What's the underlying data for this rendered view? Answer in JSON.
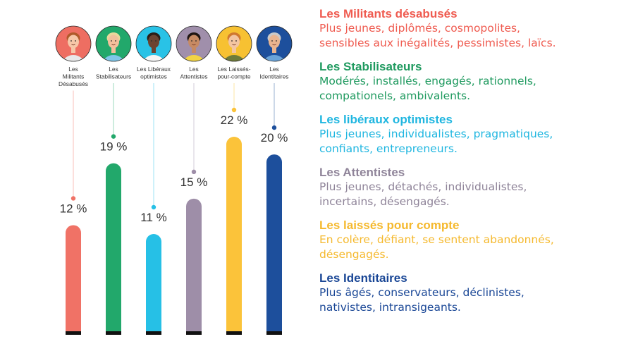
{
  "chart_data": {
    "type": "bar",
    "categories": [
      "Les\nMilitants\nDésabusés",
      "Les\nStabilisateurs",
      "Les Libéraux\noptimistes",
      "Les\nAttentistes",
      "Les Laissés-\npour-compte",
      "Les\nIdentitaires"
    ],
    "values": [
      12,
      19,
      11,
      15,
      22,
      20
    ],
    "value_labels": [
      "12 %",
      "19 %",
      "11 %",
      "15 %",
      "22 %",
      "20 %"
    ],
    "colors": [
      "#f07266",
      "#22a86b",
      "#26c0e6",
      "#9e8ea8",
      "#fbc33a",
      "#1d4f9c"
    ],
    "title": "",
    "xlabel": "",
    "ylabel": "",
    "ylim": [
      0,
      22
    ],
    "grid": false
  },
  "icons": [
    "woman-thinking-avatar",
    "man-shrugging-avatar",
    "man-arms-open-avatar",
    "woman-shrugging-avatar",
    "woman-arms-crossed-avatar",
    "older-man-stop-gesture-avatar"
  ],
  "legend": [
    {
      "title": "Les Militants désabusés",
      "desc": "Plus jeunes, diplômés, cosmopolites,\nsensibles aux inégalités, pessimistes, laïcs.",
      "color": "#ef5b50"
    },
    {
      "title": "Les Stabilisateurs",
      "desc": "Modérés, installés, engagés, rationnels,\ncompationels, ambivalents.",
      "color": "#1f9a5f"
    },
    {
      "title": "Les libéraux optimistes",
      "desc": "Plus jeunes, individualistes, pragmatiques,\nconfiants, entrepreneurs.",
      "color": "#1fb6e0"
    },
    {
      "title": "Les Attentistes",
      "desc": "Plus jeunes, détachés, individualistes,\nincertains, désengagés.",
      "color": "#8f8499"
    },
    {
      "title": "Les laissés pour compte",
      "desc": "En colère, défiant, se sentent abandonnés,\ndésengagés.",
      "color": "#f5b92e"
    },
    {
      "title": "Les Identitaires",
      "desc": "Plus âgés, conservateurs, déclinistes,\nnativistes, intransigeants.",
      "color": "#1a4796"
    }
  ]
}
